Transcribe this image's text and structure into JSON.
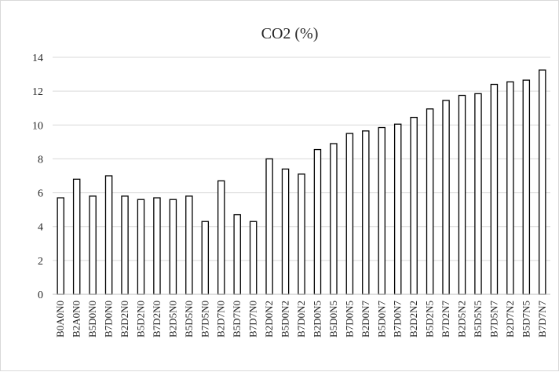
{
  "chart_data": {
    "type": "bar",
    "title": "CO2 (%)",
    "xlabel": "",
    "ylabel": "",
    "ylim": [
      0,
      14
    ],
    "yticks": [
      0,
      2,
      4,
      6,
      8,
      10,
      12,
      14
    ],
    "grid": "horizontal",
    "legend": "none",
    "bar_fill": "#ffffff",
    "bar_stroke": "#000000",
    "grid_color": "#d9d9d9",
    "categories": [
      "B0A0N0",
      "B2A0N0",
      "B5D0N0",
      "B7D0N0",
      "B2D2N0",
      "B5D2N0",
      "B7D2N0",
      "B2D5N0",
      "B5D5N0",
      "B7D5N0",
      "B2D7N0",
      "B5D7N0",
      "B7D7N0",
      "B2D0N2",
      "B5D0N2",
      "B7D0N2",
      "B2D0N5",
      "B5D0N5",
      "B7D0N5",
      "B2D0N7",
      "B5D0N7",
      "B7D0N7",
      "B2D2N2",
      "B5D2N5",
      "B7D2N7",
      "B2D5N2",
      "B5D5N5",
      "B7D5N7",
      "B2D7N2",
      "B5D7N5",
      "B7D7N7"
    ],
    "values": [
      5.7,
      6.8,
      5.8,
      7.0,
      5.8,
      5.6,
      5.7,
      5.6,
      5.8,
      4.3,
      6.7,
      4.7,
      4.3,
      8.0,
      7.4,
      7.1,
      8.55,
      8.9,
      9.5,
      9.65,
      9.85,
      10.05,
      10.45,
      10.95,
      11.45,
      11.75,
      11.85,
      12.4,
      12.55,
      12.65,
      13.25
    ]
  }
}
